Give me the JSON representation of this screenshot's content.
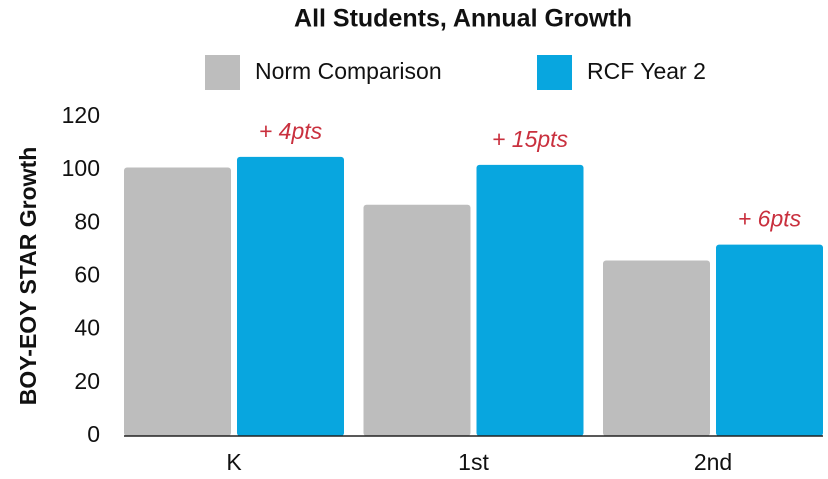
{
  "chart_data": {
    "type": "bar",
    "title": "All Students, Annual Growth",
    "y_label": "BOY-EOY STAR Growth",
    "categories": [
      "K",
      "1st",
      "2nd"
    ],
    "series": [
      {
        "name": "Norm Comparison",
        "color": "#bdbdbd",
        "values": [
          101,
          87,
          66
        ]
      },
      {
        "name": "RCF Year 2",
        "color": "#08a6df",
        "values": [
          105,
          102,
          72
        ]
      }
    ],
    "annotations": [
      "+ 4pts",
      "+ 15pts",
      "+ 6pts"
    ],
    "annotation_color": "#c9303e",
    "ylim": [
      0,
      120
    ],
    "yticks": [
      0,
      20,
      40,
      60,
      80,
      100,
      120
    ],
    "grid": false
  }
}
